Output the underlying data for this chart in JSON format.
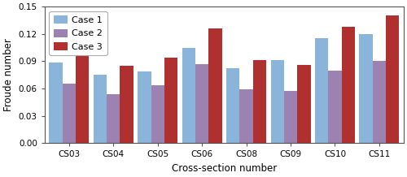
{
  "categories": [
    "CS03",
    "CS04",
    "CS05",
    "CS06",
    "CS08",
    "CS09",
    "CS10",
    "CS11"
  ],
  "case1": [
    0.089,
    0.075,
    0.079,
    0.105,
    0.082,
    0.091,
    0.115,
    0.12
  ],
  "case2": [
    0.065,
    0.054,
    0.064,
    0.087,
    0.059,
    0.057,
    0.08,
    0.09
  ],
  "case3": [
    0.098,
    0.085,
    0.094,
    0.126,
    0.091,
    0.086,
    0.128,
    0.14
  ],
  "color1": "#8ab4d9",
  "color2": "#9b82b0",
  "color3": "#b03030",
  "xlabel": "Cross-section number",
  "ylabel": "Froude number",
  "ylim": [
    0.0,
    0.15
  ],
  "yticks": [
    0.0,
    0.03,
    0.06,
    0.09,
    0.12,
    0.15
  ],
  "legend_labels": [
    "Case 1",
    "Case 2",
    "Case 3"
  ],
  "bar_width": 0.3,
  "tick_fontsize": 7.5,
  "label_fontsize": 8.5,
  "legend_fontsize": 8
}
